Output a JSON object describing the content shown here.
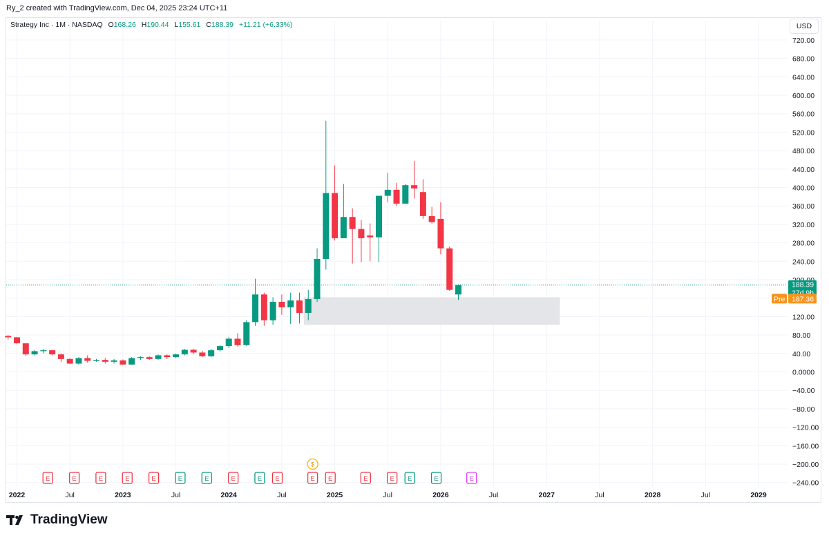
{
  "header": {
    "credit": "Ry_2 created with TradingView.com, Dec 04, 2025 23:24 UTC+11"
  },
  "legend": {
    "symbol": "Strategy Inc · 1M · NASDAQ",
    "o_label": "O",
    "o_value": "168.26",
    "h_label": "H",
    "h_value": "190.44",
    "l_label": "L",
    "l_value": "155.61",
    "c_label": "C",
    "c_value": "188.39",
    "change": "+11.21 (+6.33%)"
  },
  "currency": "USD",
  "brand": "TradingView",
  "colors": {
    "up": "#089981",
    "down": "#f23645",
    "grid": "#f0f3fa",
    "text": "#131722",
    "zone": "#e3e4e7",
    "pre": "#f7941d",
    "earnings_future": "#e040fb"
  },
  "chart_data": {
    "type": "candlestick",
    "title": "Strategy Inc · 1M · NASDAQ",
    "ylim": [
      -260,
      760
    ],
    "y_ticks": [
      "720.00",
      "680.00",
      "640.00",
      "600.00",
      "560.00",
      "520.00",
      "480.00",
      "440.00",
      "400.00",
      "360.00",
      "320.00",
      "280.00",
      "240.00",
      "200.00",
      "160.00",
      "120.00",
      "80.00",
      "40.00",
      "0.0000",
      "−40.00",
      "−80.00",
      "−120.00",
      "−160.00",
      "−200.00",
      "−240.00"
    ],
    "y_tick_values": [
      720,
      680,
      640,
      600,
      560,
      520,
      480,
      440,
      400,
      360,
      320,
      280,
      240,
      200,
      160,
      120,
      80,
      40,
      0,
      -40,
      -80,
      -120,
      -160,
      -200,
      -240
    ],
    "x_ticks": [
      {
        "label": "2022",
        "m": 0,
        "bold": true
      },
      {
        "label": "Jul",
        "m": 6,
        "bold": false
      },
      {
        "label": "2023",
        "m": 12,
        "bold": true
      },
      {
        "label": "Jul",
        "m": 18,
        "bold": false
      },
      {
        "label": "2024",
        "m": 24,
        "bold": true
      },
      {
        "label": "Jul",
        "m": 30,
        "bold": false
      },
      {
        "label": "2025",
        "m": 36,
        "bold": true
      },
      {
        "label": "Jul",
        "m": 42,
        "bold": false
      },
      {
        "label": "2026",
        "m": 48,
        "bold": true
      },
      {
        "label": "Jul",
        "m": 54,
        "bold": false
      },
      {
        "label": "2027",
        "m": 60,
        "bold": true
      },
      {
        "label": "Jul",
        "m": 66,
        "bold": false
      },
      {
        "label": "2028",
        "m": 72,
        "bold": true
      },
      {
        "label": "Jul",
        "m": 78,
        "bold": false
      },
      {
        "label": "2029",
        "m": 84,
        "bold": true
      }
    ],
    "candles": [
      [
        -1,
        78,
        80,
        70,
        75
      ],
      [
        0,
        75,
        76,
        60,
        62
      ],
      [
        1,
        62,
        62,
        35,
        38
      ],
      [
        2,
        38,
        48,
        36,
        45
      ],
      [
        3,
        45,
        50,
        40,
        47
      ],
      [
        4,
        47,
        48,
        36,
        38
      ],
      [
        5,
        38,
        40,
        22,
        28
      ],
      [
        6,
        28,
        30,
        17,
        18
      ],
      [
        7,
        18,
        32,
        16,
        30
      ],
      [
        8,
        30,
        36,
        20,
        24
      ],
      [
        9,
        24,
        28,
        22,
        26
      ],
      [
        10,
        26,
        30,
        18,
        22
      ],
      [
        11,
        22,
        28,
        18,
        25
      ],
      [
        12,
        25,
        27,
        15,
        16
      ],
      [
        13,
        16,
        32,
        15,
        30
      ],
      [
        14,
        30,
        34,
        26,
        32
      ],
      [
        15,
        32,
        34,
        26,
        28
      ],
      [
        16,
        28,
        38,
        26,
        36
      ],
      [
        17,
        36,
        38,
        28,
        32
      ],
      [
        18,
        32,
        40,
        30,
        38
      ],
      [
        19,
        38,
        50,
        36,
        48
      ],
      [
        20,
        48,
        50,
        38,
        42
      ],
      [
        21,
        42,
        46,
        32,
        34
      ],
      [
        22,
        34,
        50,
        32,
        47
      ],
      [
        23,
        47,
        58,
        44,
        56
      ],
      [
        24,
        56,
        76,
        52,
        72
      ],
      [
        25,
        72,
        84,
        55,
        58
      ],
      [
        26,
        58,
        112,
        56,
        108
      ],
      [
        27,
        108,
        202,
        100,
        168
      ],
      [
        28,
        168,
        172,
        100,
        112
      ],
      [
        29,
        112,
        162,
        102,
        152
      ],
      [
        30,
        152,
        168,
        124,
        140
      ],
      [
        31,
        140,
        172,
        104,
        155
      ],
      [
        32,
        155,
        172,
        105,
        128
      ],
      [
        33,
        128,
        178,
        112,
        158
      ],
      [
        34,
        158,
        268,
        152,
        245
      ],
      [
        35,
        245,
        545,
        222,
        388
      ],
      [
        36,
        388,
        448,
        285,
        290
      ],
      [
        37,
        290,
        408,
        296,
        336
      ],
      [
        38,
        336,
        355,
        235,
        310
      ],
      [
        39,
        310,
        330,
        238,
        290
      ],
      [
        40,
        296,
        322,
        240,
        292
      ],
      [
        41,
        292,
        382,
        238,
        382
      ],
      [
        42,
        382,
        432,
        368,
        395
      ],
      [
        43,
        395,
        410,
        360,
        365
      ],
      [
        44,
        365,
        408,
        368,
        405
      ],
      [
        45,
        405,
        458,
        376,
        398
      ],
      [
        46,
        390,
        418,
        332,
        338
      ],
      [
        47,
        338,
        358,
        322,
        325
      ],
      [
        48,
        332,
        368,
        255,
        268
      ],
      [
        49,
        268,
        272,
        176,
        178
      ],
      [
        50,
        168,
        190,
        156,
        188
      ]
    ],
    "last_price": {
      "value": 188.39,
      "label": "188.39",
      "countdown": "27d 9h"
    },
    "pre_market": {
      "label": "Pre",
      "value": 187.36,
      "value_label": "187.36"
    },
    "zone": {
      "m_start": 32.5,
      "m_end": 61.5,
      "low": 102,
      "high": 162
    },
    "events": [
      {
        "m": 3.5,
        "kind": "E",
        "type": "earn-neg"
      },
      {
        "m": 6.5,
        "kind": "E",
        "type": "earn-neg"
      },
      {
        "m": 9.5,
        "kind": "E",
        "type": "earn-neg"
      },
      {
        "m": 12.5,
        "kind": "E",
        "type": "earn-neg"
      },
      {
        "m": 15.5,
        "kind": "E",
        "type": "earn-neg"
      },
      {
        "m": 18.5,
        "kind": "E",
        "type": "earn-pos"
      },
      {
        "m": 21.5,
        "kind": "E",
        "type": "earn-pos"
      },
      {
        "m": 24.5,
        "kind": "E",
        "type": "earn-neg"
      },
      {
        "m": 27.5,
        "kind": "E",
        "type": "earn-pos"
      },
      {
        "m": 29.5,
        "kind": "E",
        "type": "earn-neg"
      },
      {
        "m": 33.5,
        "kind": "E",
        "type": "earn-neg"
      },
      {
        "m": 35.5,
        "kind": "E",
        "type": "earn-neg"
      },
      {
        "m": 39.5,
        "kind": "E",
        "type": "earn-neg"
      },
      {
        "m": 42.5,
        "kind": "E",
        "type": "earn-neg"
      },
      {
        "m": 44.5,
        "kind": "E",
        "type": "earn-pos"
      },
      {
        "m": 47.5,
        "kind": "E",
        "type": "earn-pos"
      },
      {
        "m": 51.5,
        "kind": "E",
        "type": "earn-future"
      },
      {
        "m": 33.5,
        "kind": "$",
        "type": "dividend"
      }
    ]
  }
}
